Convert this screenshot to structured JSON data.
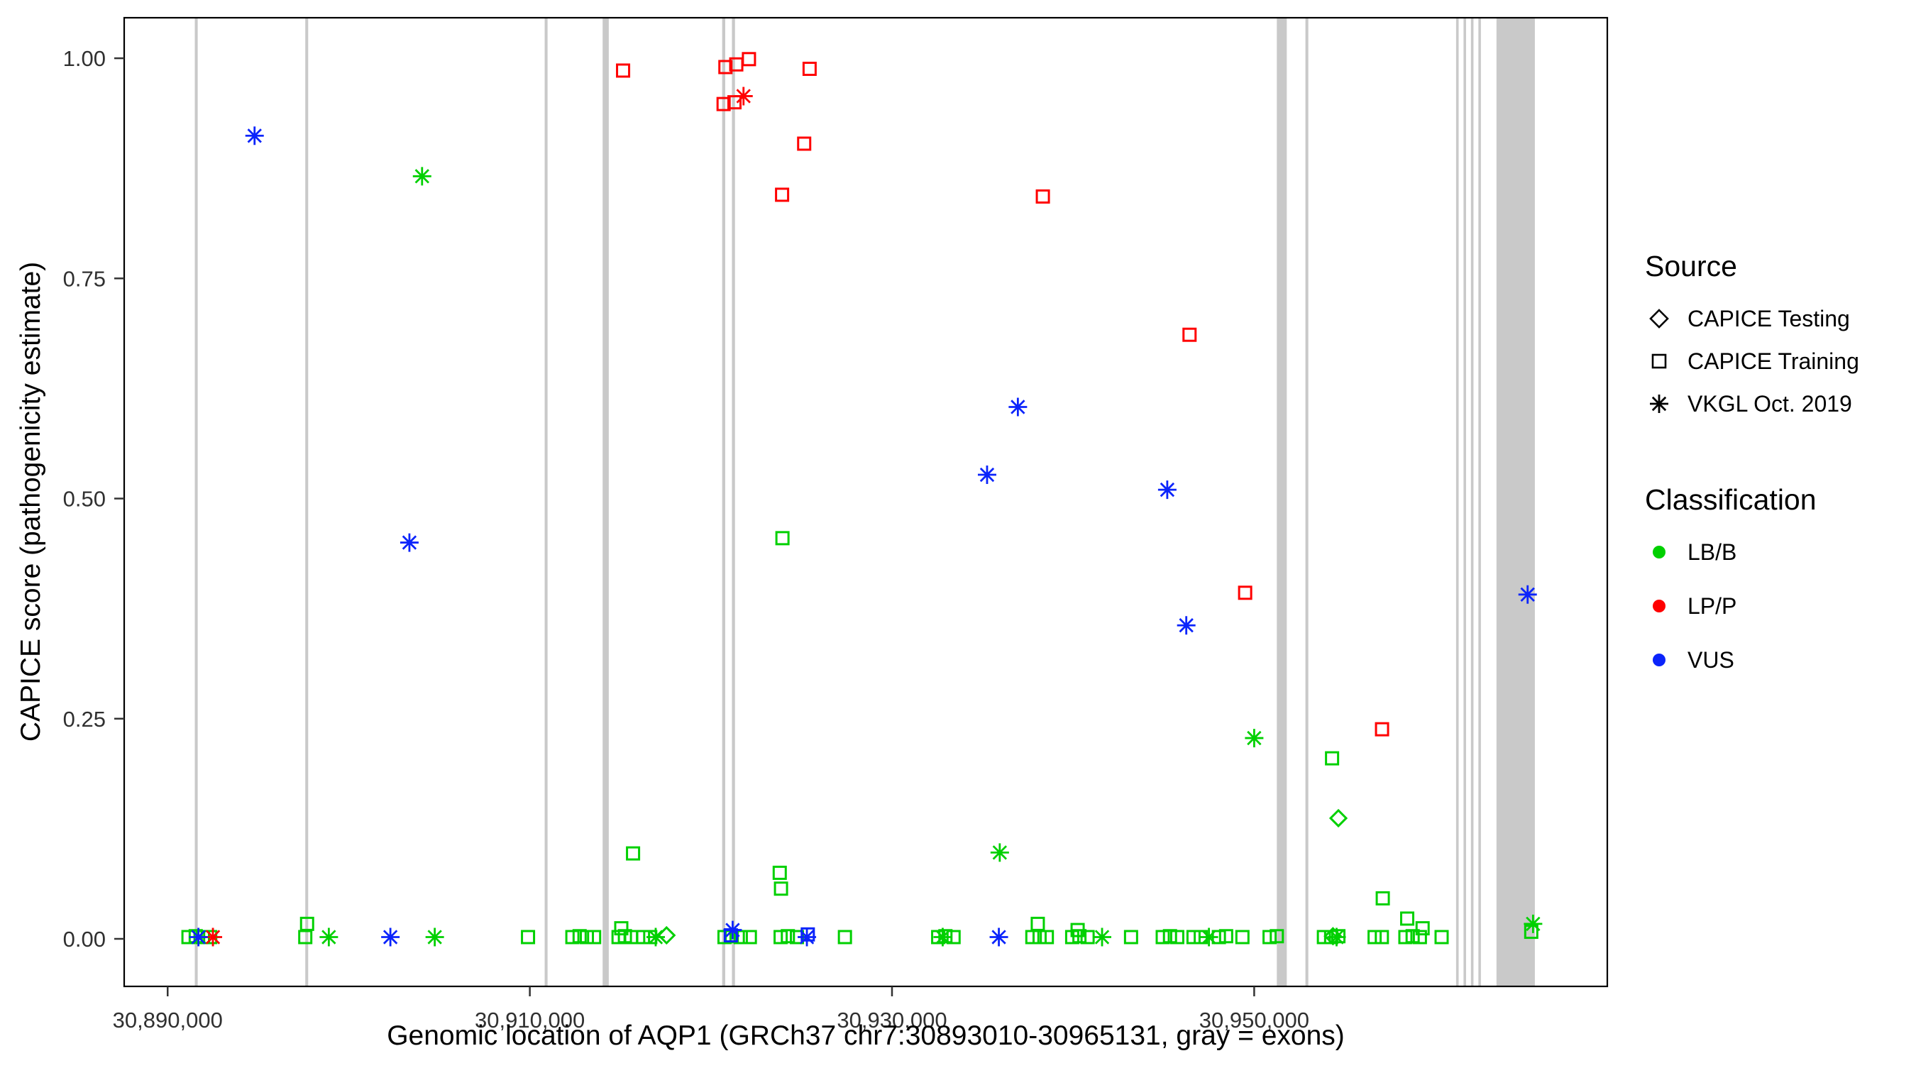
{
  "figure": {
    "x_axis": {
      "title": "Genomic location of AQP1 (GRCh37 chr7:30893010-30965131, gray = exons)",
      "ticks": [
        {
          "value": 30890000,
          "label": "30,890,000"
        },
        {
          "value": 30910000,
          "label": "30,910,000"
        },
        {
          "value": 30930000,
          "label": "30,930,000"
        },
        {
          "value": 30950000,
          "label": "30,950,000"
        }
      ]
    },
    "y_axis": {
      "title": "CAPICE score (pathogenicity estimate)",
      "ticks": [
        {
          "value": 1.0,
          "label": "1.00"
        },
        {
          "value": 0.75,
          "label": "0.75"
        },
        {
          "value": 0.5,
          "label": "0.50"
        },
        {
          "value": 0.25,
          "label": "0.25"
        },
        {
          "value": 0.0,
          "label": "0.00"
        }
      ]
    }
  },
  "legend": {
    "source": {
      "title": "Source",
      "items": [
        {
          "label": "CAPICE Testing",
          "marker": "diamond"
        },
        {
          "label": "CAPICE Training",
          "marker": "square"
        },
        {
          "label": "VKGL Oct. 2019",
          "marker": "asterisk"
        }
      ]
    },
    "classification": {
      "title": "Classification",
      "items": [
        {
          "label": "LB/B",
          "color": "#00D000"
        },
        {
          "label": "LP/P",
          "color": "#FF0000"
        },
        {
          "label": "VUS",
          "color": "#0B24FB"
        }
      ]
    }
  },
  "chart_data": {
    "type": "scatter",
    "xlabel": "Genomic location of AQP1 (GRCh37 chr7:30893010-30965131, gray = exons)",
    "ylabel": "CAPICE score (pathogenicity estimate)",
    "x_domain": [
      30887600,
      30969500
    ],
    "y_domain": [
      -0.054,
      1.046
    ],
    "grid": false,
    "legend_position": "right",
    "exon_color": "#C9C9C9",
    "colors": {
      "LB/B": "#00D000",
      "LP/P": "#FF0000",
      "VUS": "#0B24FB"
    },
    "exons": [
      [
        30891500,
        30891660
      ],
      [
        30897600,
        30897760
      ],
      [
        30910820,
        30910980
      ],
      [
        30914020,
        30914360
      ],
      [
        30920620,
        30920790
      ],
      [
        30921160,
        30921330
      ],
      [
        30951250,
        30951800
      ],
      [
        30952830,
        30952990
      ],
      [
        30961150,
        30961290
      ],
      [
        30961560,
        30961700
      ],
      [
        30961970,
        30962110
      ],
      [
        30962380,
        30962520
      ],
      [
        30963380,
        30965500
      ]
    ],
    "series": [
      {
        "source": "CAPICE Training",
        "classification": "LB/B",
        "marker": "square",
        "points": [
          [
            30915700,
            0.097
          ],
          [
            30923950,
            0.455
          ],
          [
            30923800,
            0.075
          ],
          [
            30923870,
            0.057
          ],
          [
            30954300,
            0.205
          ],
          [
            30957100,
            0.046
          ],
          [
            30958450,
            0.023
          ],
          [
            30897700,
            0.017
          ],
          [
            30938050,
            0.017
          ],
          [
            30940250,
            0.01
          ],
          [
            30959300,
            0.012
          ],
          [
            30915050,
            0.012
          ],
          [
            30965300,
            0.008
          ],
          [
            30891150,
            0.002
          ],
          [
            30891550,
            0.003
          ],
          [
            30891950,
            0.002
          ],
          [
            30892350,
            0.002
          ],
          [
            30897600,
            0.002
          ],
          [
            30909900,
            0.002
          ],
          [
            30912350,
            0.002
          ],
          [
            30912750,
            0.003
          ],
          [
            30913150,
            0.002
          ],
          [
            30913550,
            0.002
          ],
          [
            30914900,
            0.002
          ],
          [
            30915250,
            0.003
          ],
          [
            30915600,
            0.002
          ],
          [
            30916250,
            0.002
          ],
          [
            30916650,
            0.002
          ],
          [
            30920750,
            0.002
          ],
          [
            30921150,
            0.003
          ],
          [
            30921650,
            0.002
          ],
          [
            30922150,
            0.002
          ],
          [
            30923850,
            0.002
          ],
          [
            30924250,
            0.003
          ],
          [
            30924750,
            0.002
          ],
          [
            30927400,
            0.002
          ],
          [
            30932550,
            0.002
          ],
          [
            30932950,
            0.003
          ],
          [
            30933400,
            0.002
          ],
          [
            30937750,
            0.002
          ],
          [
            30938150,
            0.002
          ],
          [
            30938550,
            0.002
          ],
          [
            30939950,
            0.002
          ],
          [
            30940350,
            0.003
          ],
          [
            30940800,
            0.002
          ],
          [
            30943200,
            0.002
          ],
          [
            30944950,
            0.002
          ],
          [
            30945350,
            0.003
          ],
          [
            30945750,
            0.002
          ],
          [
            30946650,
            0.002
          ],
          [
            30947050,
            0.002
          ],
          [
            30948050,
            0.002
          ],
          [
            30948450,
            0.003
          ],
          [
            30949350,
            0.002
          ],
          [
            30950850,
            0.002
          ],
          [
            30951250,
            0.003
          ],
          [
            30953850,
            0.002
          ],
          [
            30954250,
            0.002
          ],
          [
            30954650,
            0.003
          ],
          [
            30956650,
            0.002
          ],
          [
            30957050,
            0.002
          ],
          [
            30958350,
            0.002
          ],
          [
            30958750,
            0.003
          ],
          [
            30959150,
            0.002
          ],
          [
            30960350,
            0.002
          ]
        ]
      },
      {
        "source": "CAPICE Training",
        "classification": "LP/P",
        "marker": "square",
        "points": [
          [
            30915150,
            0.986
          ],
          [
            30920800,
            0.99
          ],
          [
            30921400,
            0.993
          ],
          [
            30922100,
            0.999
          ],
          [
            30925450,
            0.988
          ],
          [
            30920700,
            0.948
          ],
          [
            30921300,
            0.95
          ],
          [
            30925150,
            0.903
          ],
          [
            30923930,
            0.845
          ],
          [
            30938330,
            0.843
          ],
          [
            30946430,
            0.686
          ],
          [
            30949500,
            0.393
          ],
          [
            30957060,
            0.238
          ]
        ]
      },
      {
        "source": "CAPICE Training",
        "classification": "VUS",
        "marker": "square",
        "points": [
          [
            30921100,
            0.004
          ],
          [
            30925350,
            0.005
          ]
        ]
      },
      {
        "source": "CAPICE Testing",
        "classification": "LB/B",
        "marker": "diamond",
        "points": [
          [
            30954650,
            0.137
          ],
          [
            30917550,
            0.004
          ],
          [
            30954350,
            0.003
          ]
        ]
      },
      {
        "source": "VKGL Oct. 2019",
        "classification": "LB/B",
        "marker": "asterisk",
        "points": [
          [
            30904050,
            0.866
          ],
          [
            30935950,
            0.098
          ],
          [
            30950000,
            0.228
          ],
          [
            30965400,
            0.017
          ],
          [
            30898900,
            0.002
          ],
          [
            30904750,
            0.002
          ],
          [
            30916950,
            0.002
          ],
          [
            30932800,
            0.002
          ],
          [
            30941600,
            0.002
          ],
          [
            30947500,
            0.002
          ],
          [
            30954550,
            0.002
          ]
        ]
      },
      {
        "source": "VKGL Oct. 2019",
        "classification": "LP/P",
        "marker": "asterisk",
        "points": [
          [
            30921800,
            0.957
          ],
          [
            30892500,
            0.002
          ]
        ]
      },
      {
        "source": "VKGL Oct. 2019",
        "classification": "VUS",
        "marker": "asterisk",
        "points": [
          [
            30894800,
            0.912
          ],
          [
            30903350,
            0.45
          ],
          [
            30935250,
            0.527
          ],
          [
            30936950,
            0.604
          ],
          [
            30945200,
            0.51
          ],
          [
            30946250,
            0.356
          ],
          [
            30965100,
            0.391
          ],
          [
            30891700,
            0.002
          ],
          [
            30902300,
            0.002
          ],
          [
            30921200,
            0.01
          ],
          [
            30925300,
            0.002
          ],
          [
            30935900,
            0.002
          ]
        ]
      }
    ]
  }
}
